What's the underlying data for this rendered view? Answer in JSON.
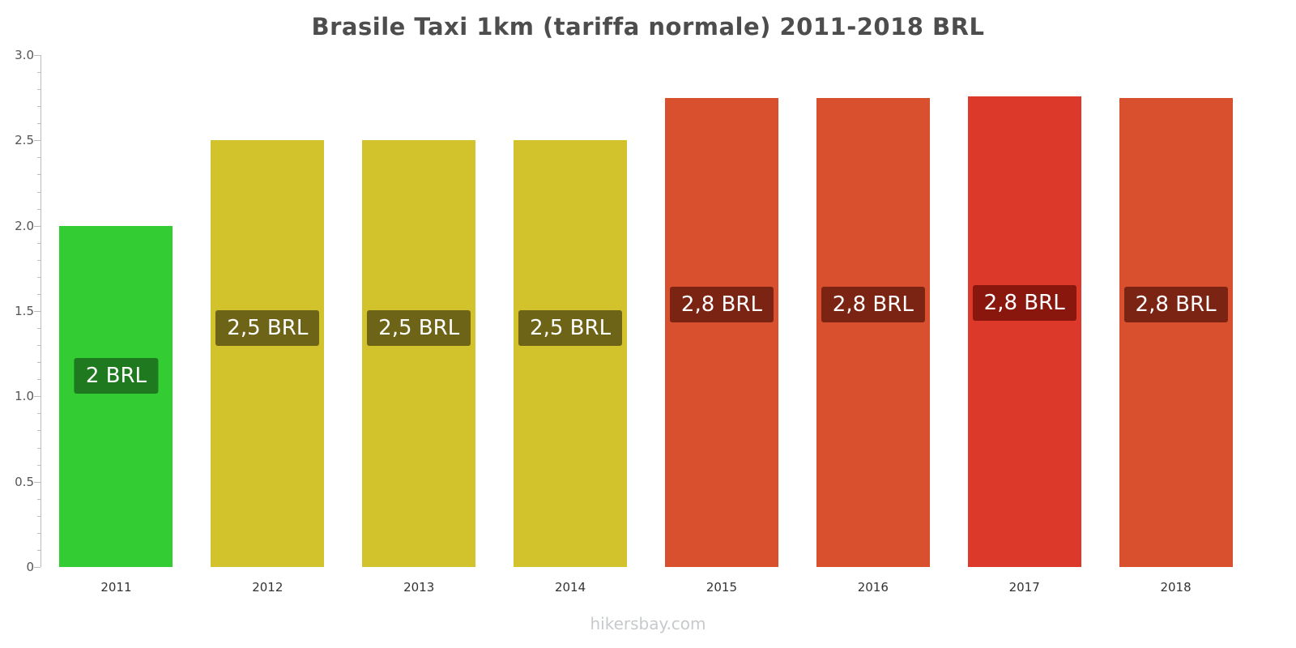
{
  "title": "Brasile Taxi 1km (tariffa normale) 2011-2018 BRL",
  "footer": "hikersbay.com",
  "chart_data": {
    "type": "bar",
    "title": "Brasile Taxi 1km (tariffa normale) 2011-2018 BRL",
    "xlabel": "",
    "ylabel": "",
    "categories": [
      "2011",
      "2012",
      "2013",
      "2014",
      "2015",
      "2016",
      "2017",
      "2018"
    ],
    "values": [
      2.0,
      2.5,
      2.5,
      2.5,
      2.75,
      2.75,
      2.76,
      2.75
    ],
    "value_labels": [
      "2 BRL",
      "2,5 BRL",
      "2,5 BRL",
      "2,5 BRL",
      "2,8 BRL",
      "2,8 BRL",
      "2,8 BRL",
      "2,8 BRL"
    ],
    "bar_colors": [
      "#33cc33",
      "#d2c22c",
      "#d2c22c",
      "#d2c22c",
      "#d8502e",
      "#d8502e",
      "#dc392b",
      "#d8502e"
    ],
    "label_bg_colors": [
      "#1f7a1f",
      "#6e6418",
      "#6e6418",
      "#6e6418",
      "#7c2413",
      "#7c2413",
      "#8a170d",
      "#7c2413"
    ],
    "ylim": [
      0,
      3.0
    ],
    "yticks": [
      0,
      0.5,
      1.0,
      1.5,
      2.0,
      2.5,
      3.0
    ],
    "ytick_labels": [
      "0",
      "0.5",
      "1.0",
      "1.5",
      "2.0",
      "2.5",
      "3.0"
    ],
    "grid": "off",
    "legend": "none"
  }
}
